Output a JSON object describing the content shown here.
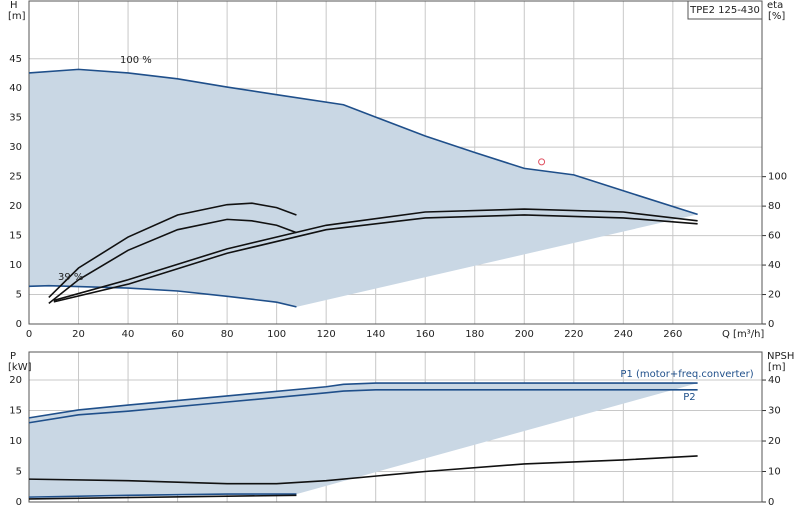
{
  "chart_data": [
    {
      "type": "line",
      "title": "TPE2 125-430",
      "ylabel": [
        "H",
        "[m]"
      ],
      "y2label": [
        "eta",
        "[%]"
      ],
      "xlabel": "Q [m³/h]",
      "xlim": [
        0,
        296
      ],
      "xticks": [
        0,
        20,
        40,
        60,
        80,
        100,
        120,
        140,
        160,
        180,
        200,
        220,
        240,
        260
      ],
      "ylim": [
        0,
        54.8
      ],
      "yticks": [
        0,
        5,
        10,
        15,
        20,
        25,
        30,
        35,
        40,
        45
      ],
      "y2lim": [
        0,
        219.2
      ],
      "y2ticks": [
        0,
        20,
        40,
        60,
        80,
        100
      ],
      "grid": true,
      "area_color": "#c9d7e4",
      "annotations": [
        "100 %",
        "39 %"
      ],
      "series": [
        {
          "color": "#1f4f8a",
          "x": [
            0,
            20,
            40,
            60,
            80,
            100,
            127,
            140,
            160,
            180,
            200,
            220,
            240,
            270
          ],
          "values": [
            42.6,
            43.2,
            42.6,
            41.6,
            40.2,
            38.9,
            37.2,
            35.1,
            31.9,
            29.1,
            26.4,
            25.3,
            22.6,
            18.6
          ]
        },
        {
          "color": "#1f4f8a",
          "x": [
            0,
            8,
            40,
            60,
            80,
            100,
            108
          ],
          "values": [
            6.4,
            6.5,
            6.1,
            5.6,
            4.7,
            3.7,
            2.9
          ]
        },
        {
          "color": "#111111",
          "axis": "y2",
          "x": [
            10,
            40,
            80,
            120,
            160,
            200,
            240,
            270
          ],
          "values": [
            16,
            30,
            51,
            67,
            76,
            78,
            76,
            70
          ]
        },
        {
          "color": "#111111",
          "axis": "y2",
          "x": [
            10,
            40,
            80,
            120,
            160,
            200,
            240,
            270
          ],
          "values": [
            15,
            27,
            48,
            64,
            72,
            74,
            72,
            68
          ]
        },
        {
          "color": "#111111",
          "axis": "y2",
          "x": [
            8,
            20,
            40,
            60,
            80,
            90,
            100,
            108
          ],
          "values": [
            18,
            38,
            59,
            74,
            81,
            82,
            79,
            74
          ]
        },
        {
          "color": "#111111",
          "axis": "y2",
          "x": [
            8,
            20,
            40,
            60,
            80,
            90,
            100,
            108
          ],
          "values": [
            14,
            30,
            50,
            64,
            71,
            70,
            67,
            62
          ]
        }
      ],
      "points": [
        {
          "x": 207,
          "y": 27.5,
          "color": "#e05060"
        }
      ]
    },
    {
      "type": "line",
      "ylabel": [
        "P",
        "[kW]"
      ],
      "y2label": [
        "NPSH",
        "[m]"
      ],
      "xlim": [
        0,
        296
      ],
      "ylim": [
        0,
        24.6
      ],
      "yticks": [
        0,
        5,
        10,
        15,
        20
      ],
      "y2lim": [
        0,
        49.2
      ],
      "y2ticks": [
        0,
        10,
        20,
        30,
        40
      ],
      "grid": true,
      "area_color": "#c9d7e4",
      "series": [
        {
          "name": "P1 (motor+freq.converter)",
          "color": "#1f4f8a",
          "x": [
            0,
            20,
            40,
            80,
            120,
            127,
            140,
            200,
            270
          ],
          "values": [
            13.8,
            15.1,
            15.9,
            17.4,
            18.9,
            19.3,
            19.5,
            19.5,
            19.5
          ]
        },
        {
          "name": "P2",
          "color": "#1f4f8a",
          "x": [
            0,
            20,
            40,
            80,
            120,
            127,
            140,
            200,
            270
          ],
          "values": [
            13.0,
            14.3,
            14.9,
            16.4,
            17.9,
            18.2,
            18.4,
            18.4,
            18.4
          ]
        },
        {
          "color": "#1f4f8a",
          "x": [
            0,
            40,
            80,
            108
          ],
          "values": [
            0.8,
            1.1,
            1.3,
            1.3
          ]
        },
        {
          "color": "#111111",
          "x": [
            0,
            108
          ],
          "values": [
            0.5,
            1.1
          ]
        },
        {
          "color": "#111111",
          "axis": "y2",
          "x": [
            0,
            40,
            80,
            100,
            120,
            160,
            200,
            240,
            270
          ],
          "values": [
            7.5,
            7,
            6,
            6,
            7,
            10,
            12.5,
            13.8,
            15.1
          ]
        }
      ]
    }
  ]
}
